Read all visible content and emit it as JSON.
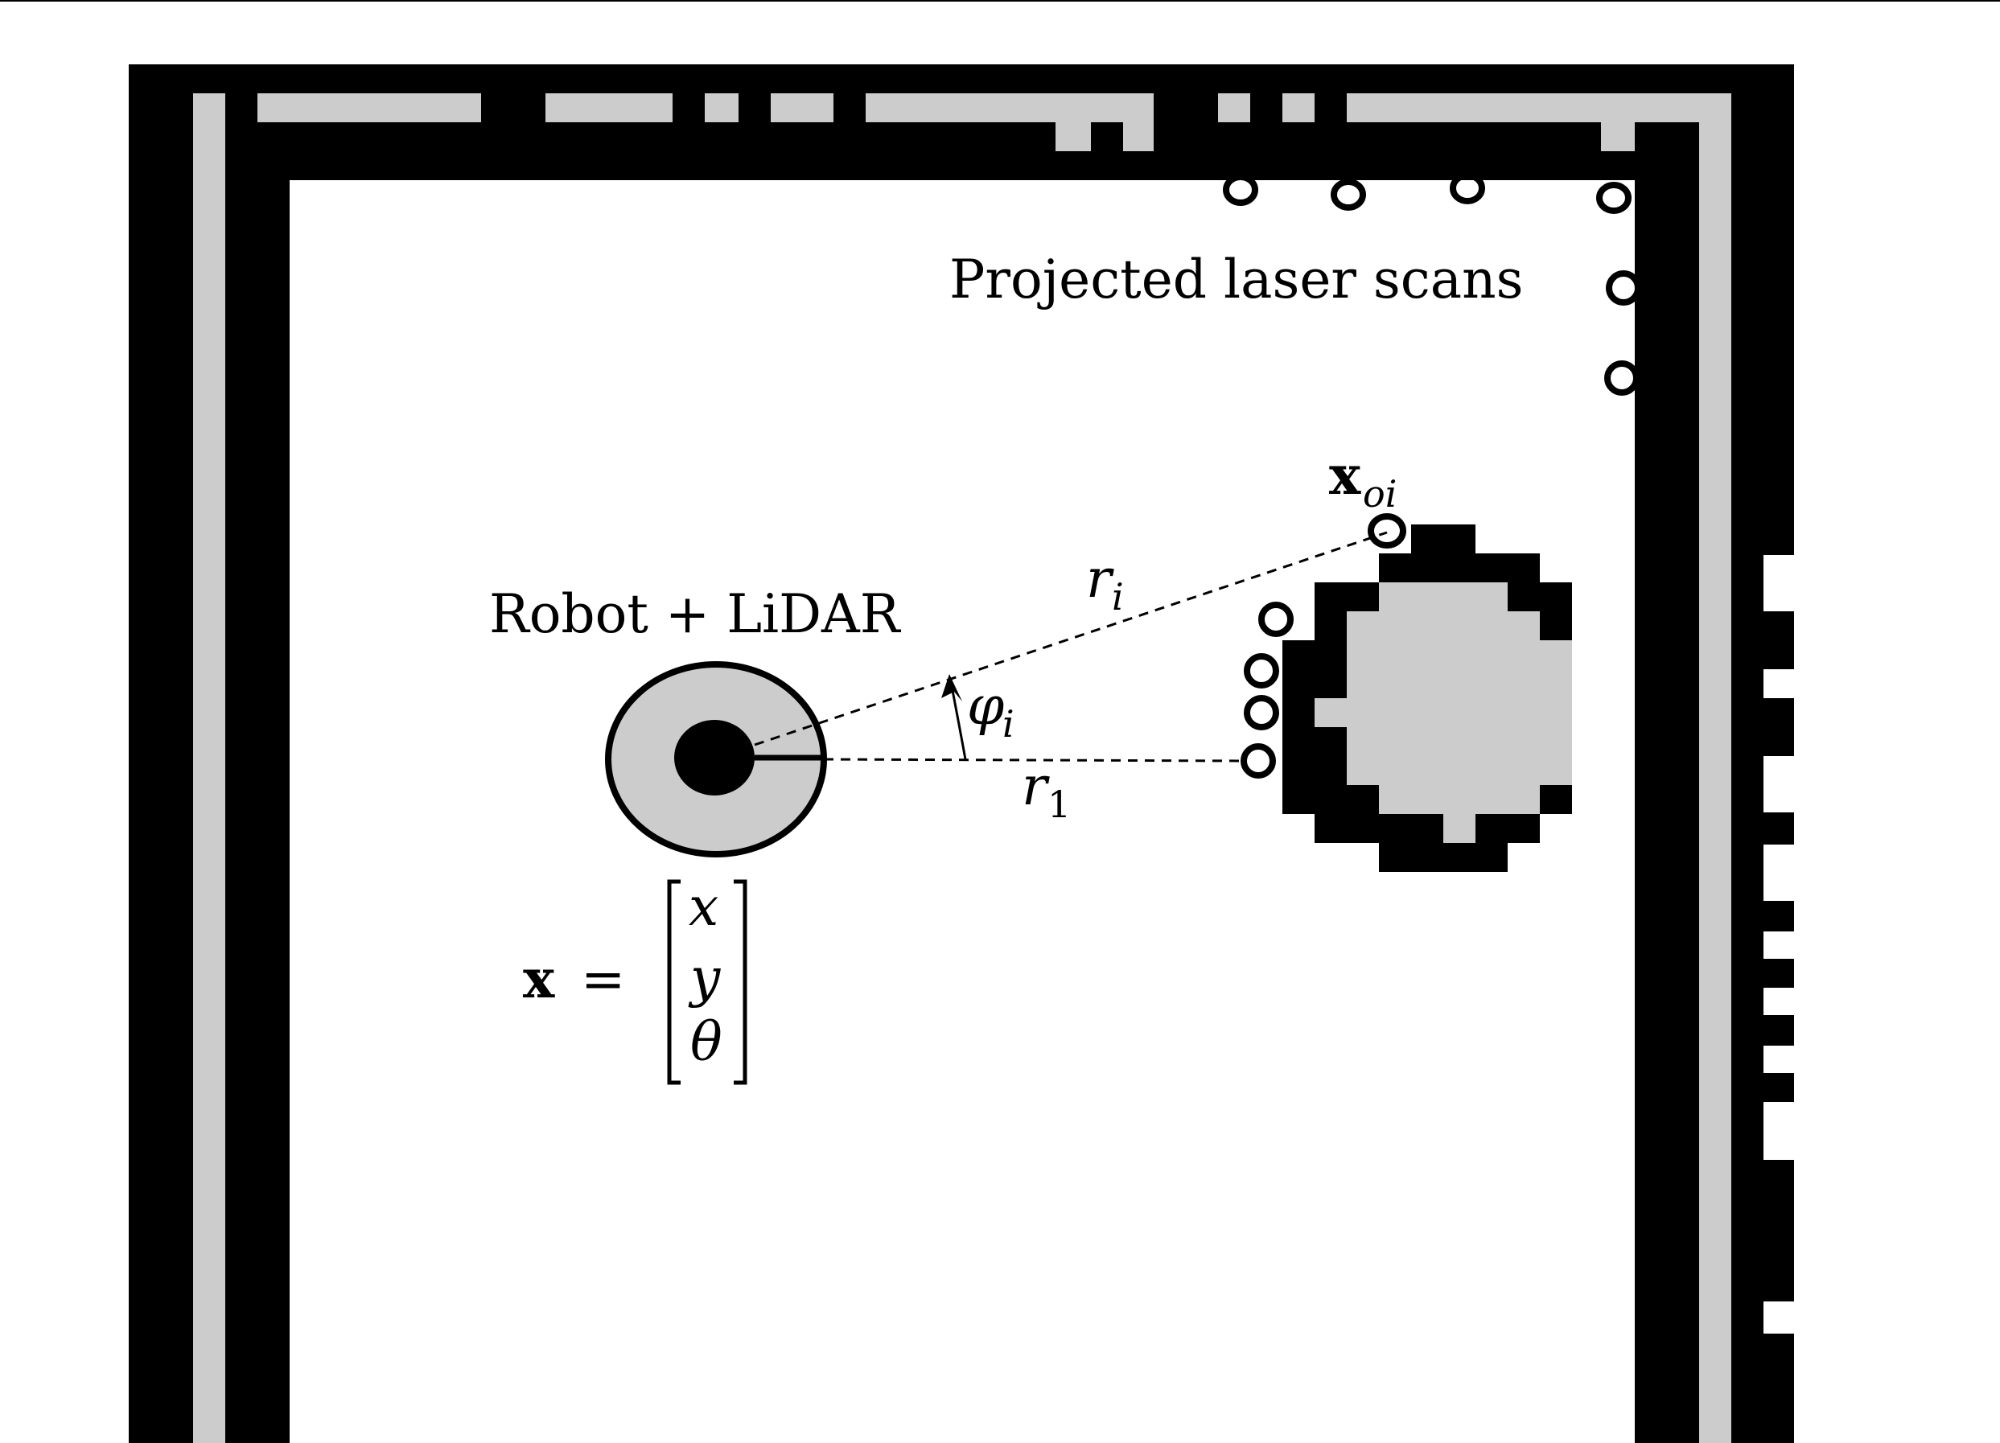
{
  "annotations": {
    "scans_label": "Projected laser scans",
    "robot_label": "Robot + LiDAR",
    "point_label_base": "x",
    "point_label_sub": "oi",
    "range_i_base": "r",
    "range_i_sub": "i",
    "range_1_base": "r",
    "range_1_sub": "1",
    "angle_base": "φ",
    "angle_sub": "i",
    "state_lhs": "x",
    "state_eq": "=",
    "state_vector": [
      "x",
      "y",
      "θ"
    ]
  },
  "colors": {
    "occupied": "#000000",
    "unknown": "#cccccc",
    "free": "#ffffff",
    "robot_fill": "#cccccc"
  }
}
